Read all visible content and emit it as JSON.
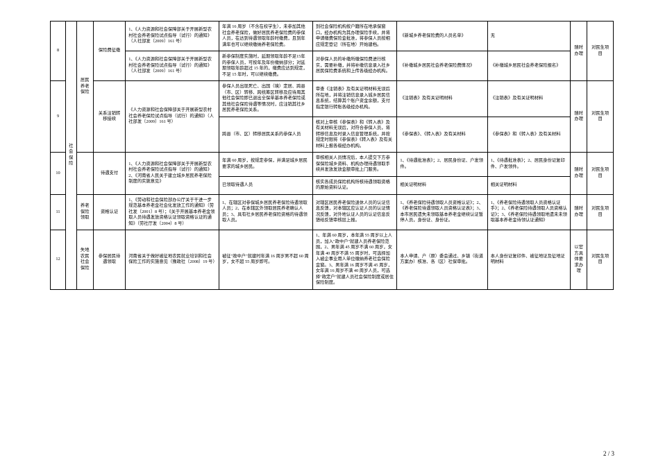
{
  "page_number": "2 / 3",
  "category_vertical": "社会保险",
  "rows": {
    "r8a": {
      "idx": "8",
      "item": "保险费征缴",
      "basis": "1、《人力资源和社会保障部关于开展新型农村社会养老保险试点指导（试行）的通知》（人社部发〔2009〕161 号）",
      "cond": "年满 16 周岁（不含在校学生），未参加其他社会养老保险，做好居民养老保险费的参保人员，在达到待遇领取年龄时缴费，且到年满年也可以继续缴纳养老保险费。",
      "proc": "到社会保险机构按户籍所在地承保窗口，经办机构为其办理保险手续，并将申请缴费保险金批准，将参保人员按相应规定登记（所在地）开始建档。",
      "mat": "《新城乡养老保险费的人员名单》",
      "mat2": "无",
      "time": "随时办理",
      "note": "对民生项目"
    },
    "r8b": {
      "basis": "1、《人力资源和社会保障部关于开展新型农村社会养老保险试点指导（试行）的通知》（人社部发〔2009〕161 号）",
      "cond": "新参保制度实施时，延期领取年龄不足15年的参保人员，可按年及年份缴纳部分；对延期领取年龄超过 15 年的，缴费应达到规定，不足 15 年时，可以继续缴费。",
      "proc": "对参保人员的补缴所缴保险费进行核实，需要补缴，并将补缴信息录入社乡居民保险费系统和上传各级经办机构。",
      "mat": "《补缴城乡居民社会养老保险费情况》",
      "mat2": "《补缴城乡居民社会养老保险报名》"
    },
    "r9a": {
      "sub": "居民养老保险",
      "idx": "9",
      "item": "关系注销转移接续",
      "basis": "《人力资源和社会保障部关于开展新型农村社会养老保险试点指导（试行）的通知》（人社部发〔2009〕161 号）",
      "cond": "参保人员出现死亡、出国（境）定居、跨县（市、区）转移、跨统筹区转移及应待周其他社会保险即已退出全保单基本养老保险或其他社会保险待遇等情况时，应注销其社乡居民养老保险关系。",
      "proc": "审查《注销表》及有关证明材料无误后所在地，并将注销信息录入城乡居民信息系统，结算其个账户资金余额，支付指定银行转账各级经办机构。",
      "mat": "《注销表》及有关证明材料",
      "mat2": "《注销表》及有关证明材料",
      "time": "随时办理",
      "note": "对民生项目"
    },
    "r9b": {
      "cond": "跨县（市、区）转移居民关系的参保人员",
      "proc": "核对上审核《参保表》和《转入表》及有关材料无误后，对符合参保人员，将转移信息及时录入信息管理系统，并按规定时限将《参保表》《转入表》及有关材料上报各级经办机构。",
      "mat": "《参保表》、《转入表》及有关材料",
      "mat2": "《参保表》和《转入表》及有关材料"
    },
    "r10a": {
      "idx": "10",
      "item": "待遇支付",
      "basis": "1、《人力资源和社会保障部关于开展新型农村社会养老保险试点指导（试行）的通知》2、《河南省人民关于建立城乡居民养老保险制度的实施意见》",
      "cond": "年满 60 周岁，按规定参保，并满足城乡居民要求的城乡居民。",
      "proc": "审核相关人员情况后，本人提交下方参保保险城乡资料、机构办理待遇领取手续并发放发放金额审批上门服务。",
      "mat": "1、《待遇批准表》；2、居民身份证、户发领件。",
      "mat2": "1、《待遇批准表》；2、居民身份证复印件、户发领件。",
      "time": "随时办理",
      "note": "对民生项目"
    },
    "r10b": {
      "cond": "已领取待遇人员",
      "proc": "核实各成员保险机构所核待遇领取资格的原始资料认证。",
      "mat": "相关证明材料",
      "mat2": "相关证明材料"
    },
    "r11": {
      "sub": "养老保险领取",
      "idx": "11",
      "item": "资格认证",
      "basis": "1、《劳动和社会保险部办公厅关于干进一步规范基本养老金社会化发放工作的通知》（劳社发〔2001〕8 号）；《关于开展基本养老金领取人员待遇发放资格认证领取资格认证的通知》（劳社厅发〔2004〕8 号）",
      "cond": "1、在辖区对参保城乡居民养老保险待遇领取人员；2、在本辖区外领取居民养老确认人员；3、具有社乡居民养老保险资格的待遇领取人员。",
      "proc": "对辖区居民养老保险退休人员的认证信息反馈，对本辖区应认证人员的认证情况反馈，对外地认证人员的认证信息反馈给反馈审核层上报。",
      "mat": "1、《养老保险待遇领取人员资格认证》；2、《养老保险待遇领取人员资格认证表》；3、本市居民遗失未领取基本养老金继续认证暂停人员，身份证、身份证。",
      "mat2": "1、《养老保险待遇领取人员资格认证手》；2、《养老保险待遇领取人员资格认证》；3、《养老保险待遇领取地遗未未领取基本养老金待领认证通知》",
      "time": "随时办理",
      "note": "对民生项目"
    },
    "r12": {
      "sub": "失地农民社会保险",
      "idx": "12",
      "item": "参保居民待遇领取",
      "basis": "河南省关于做好被征地农民就业培训和社会保险工作的实施意见（豫政社〔2008〕19 号）",
      "cond": "被征\"政中户\"就建时年满 16 周岁男不超 60 周岁，女不超 55 周岁即可。",
      "proc": "1、年满 60 周岁，本年满 55 周岁以上人员，加入\"政中户\"就建人员养老保险范围，2、男年满 45 周岁不满 60 周岁，女年满 40 周岁不满 55 周岁时，可选择加入被企事业用人单位缴纳养老社会保险金窗。3、男年满 16 周岁不满 45 周岁，女年满 16 周岁不满 40 周岁人员，可选择\"政定户\"就建人员社会保险制度或居住保险制度。",
      "mat": "本人申请、户（原）委会通过、乡镇（街道方案办）核准、各（区）社保审批。",
      "mat2": "本人身份证复印件、被征地证及征地证明材料",
      "time": "以官方具体要求办理",
      "note": "对民生项目"
    }
  }
}
